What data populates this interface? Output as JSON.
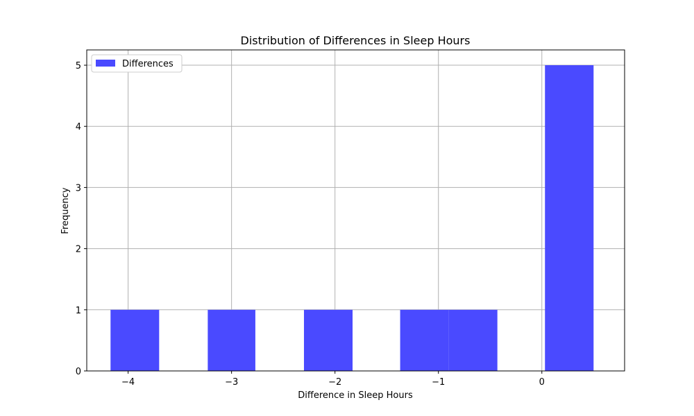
{
  "chart_data": {
    "type": "bar",
    "title": "Distribution of Differences in Sleep Hours",
    "xlabel": "Difference in Sleep Hours",
    "ylabel": "Frequency",
    "xlim": [
      -4.4,
      0.8
    ],
    "ylim": [
      0,
      5.25
    ],
    "xticks": [
      -4,
      -3,
      -2,
      -1,
      0
    ],
    "xtick_labels": [
      "−4",
      "−3",
      "−2",
      "−1",
      "0"
    ],
    "yticks": [
      0,
      1,
      2,
      3,
      4,
      5
    ],
    "ytick_labels": [
      "0",
      "1",
      "2",
      "3",
      "4",
      "5"
    ],
    "grid": true,
    "legend_position": "upper-left",
    "series": [
      {
        "name": "Differences",
        "color": "#4a4aff",
        "bins": [
          {
            "x0": -4.17,
            "x1": -3.7,
            "count": 1
          },
          {
            "x0": -3.23,
            "x1": -2.77,
            "count": 1
          },
          {
            "x0": -2.3,
            "x1": -1.83,
            "count": 1
          },
          {
            "x0": -1.37,
            "x1": -0.9,
            "count": 1
          },
          {
            "x0": -0.9,
            "x1": -0.43,
            "count": 1
          },
          {
            "x0": 0.03,
            "x1": 0.5,
            "count": 5
          }
        ]
      }
    ]
  }
}
